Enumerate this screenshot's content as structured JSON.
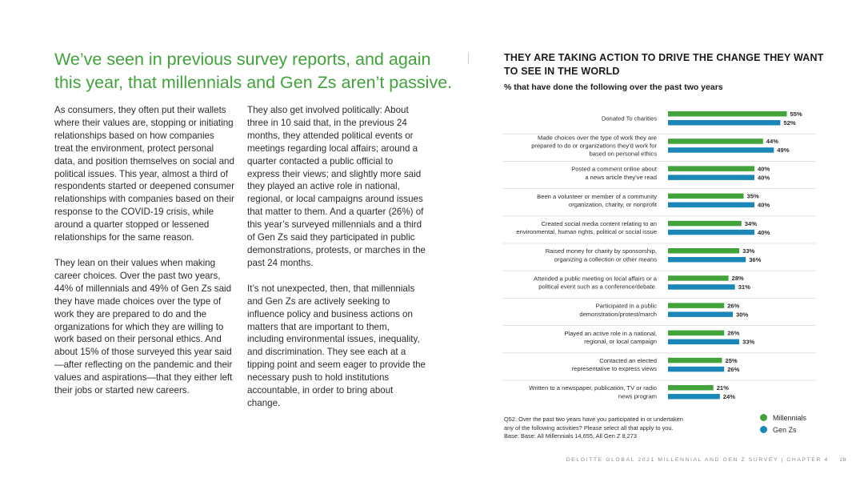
{
  "headline": "We’ve seen in previous survey reports, and again this year, that millennials and Gen Zs aren’t passive.",
  "body": {
    "left": [
      "As consumers, they often put their wallets where their values are, stopping or initiating relationships based on how companies treat the environment, protect personal data, and position themselves on social and political issues. This year, almost a third of respondents started or deepened consumer relationships with companies based on their response to the COVID-19 crisis, while around a quarter stopped or lessened relationships for the same reason.",
      "They lean on their values when making career choices. Over the past two years, 44% of millennials and 49% of Gen Zs said they have made choices over the type of work they are prepared to do and the organizations for which they are willing to work based on their personal ethics. And about 15% of those surveyed this year said—after reflecting on the pandemic and their values and aspirations—that they either left their jobs or started new careers."
    ],
    "middle": [
      "They also get involved politically: About three in 10 said that, in the previous 24 months, they attended political events or meetings regarding local affairs; around a quarter contacted a public official to express their views; and slightly more said they played an active role in national, regional, or local campaigns around issues that matter to them. And a quarter (26%) of this year’s surveyed millennials and a third of Gen Zs said they participated in public demonstrations, protests, or marches in the past 24 months.",
      "It’s not unexpected, then, that millennials and Gen Zs are actively seeking to influence policy and business actions on matters that are important to them, including environmental issues, inequality, and discrimination. They see each at a tipping point and seem eager to provide the necessary push to hold institutions accountable, in order to bring about change."
    ]
  },
  "chart_data": {
    "type": "bar",
    "orientation": "horizontal",
    "title": "THEY ARE TAKING ACTION TO DRIVE THE CHANGE THEY WANT TO SEE IN THE WORLD",
    "subtitle": "% that have done the following over the past two years",
    "xlim": [
      0,
      55
    ],
    "grid": false,
    "legend_position": "bottom-right",
    "categories": [
      [
        "Donated To charities"
      ],
      [
        "Made choices over the type of work they are",
        "prepared to do or organizations they'd work for",
        "based on personal ethics"
      ],
      [
        "Posted a comment online about",
        "a news article they've read"
      ],
      [
        "Been a volunteer or member of a community",
        "organization, charity, or nonprofit"
      ],
      [
        "Created social media content relating to an",
        "environmental, human rights, political or social issue"
      ],
      [
        "Raised money for charity by sponsorship,",
        "organizing a collection or other means"
      ],
      [
        "Attended a public meeting on local affairs or a",
        "political event such as a conference/debate."
      ],
      [
        "Participated in a public",
        "demonstration/protest/march"
      ],
      [
        "Played an active role in a national,",
        "regional, or local campaign"
      ],
      [
        "Contacted an elected",
        "representative to express views"
      ],
      [
        "Written to a newspaper, publication, TV or radio",
        "news program"
      ]
    ],
    "series": [
      {
        "name": "Millennials",
        "color": "#43a33b",
        "values": [
          55,
          44,
          40,
          35,
          34,
          33,
          28,
          26,
          26,
          25,
          21
        ]
      },
      {
        "name": "Gen Zs",
        "color": "#1b87b8",
        "values": [
          52,
          49,
          40,
          40,
          40,
          36,
          31,
          30,
          33,
          26,
          24
        ]
      }
    ],
    "value_suffix": "%"
  },
  "footnote": [
    "Q52. Over the past two years have you participated in or undertaken",
    "any of the following activities? Please select all that apply to you.",
    "Base: Base: All Millennials 14,655, All Gen Z 8,273"
  ],
  "footer": {
    "text": "DELOITTE GLOBAL 2021 MILLENNIAL AND GEN Z SURVEY  |  CHAPTER 4",
    "page": "28"
  }
}
